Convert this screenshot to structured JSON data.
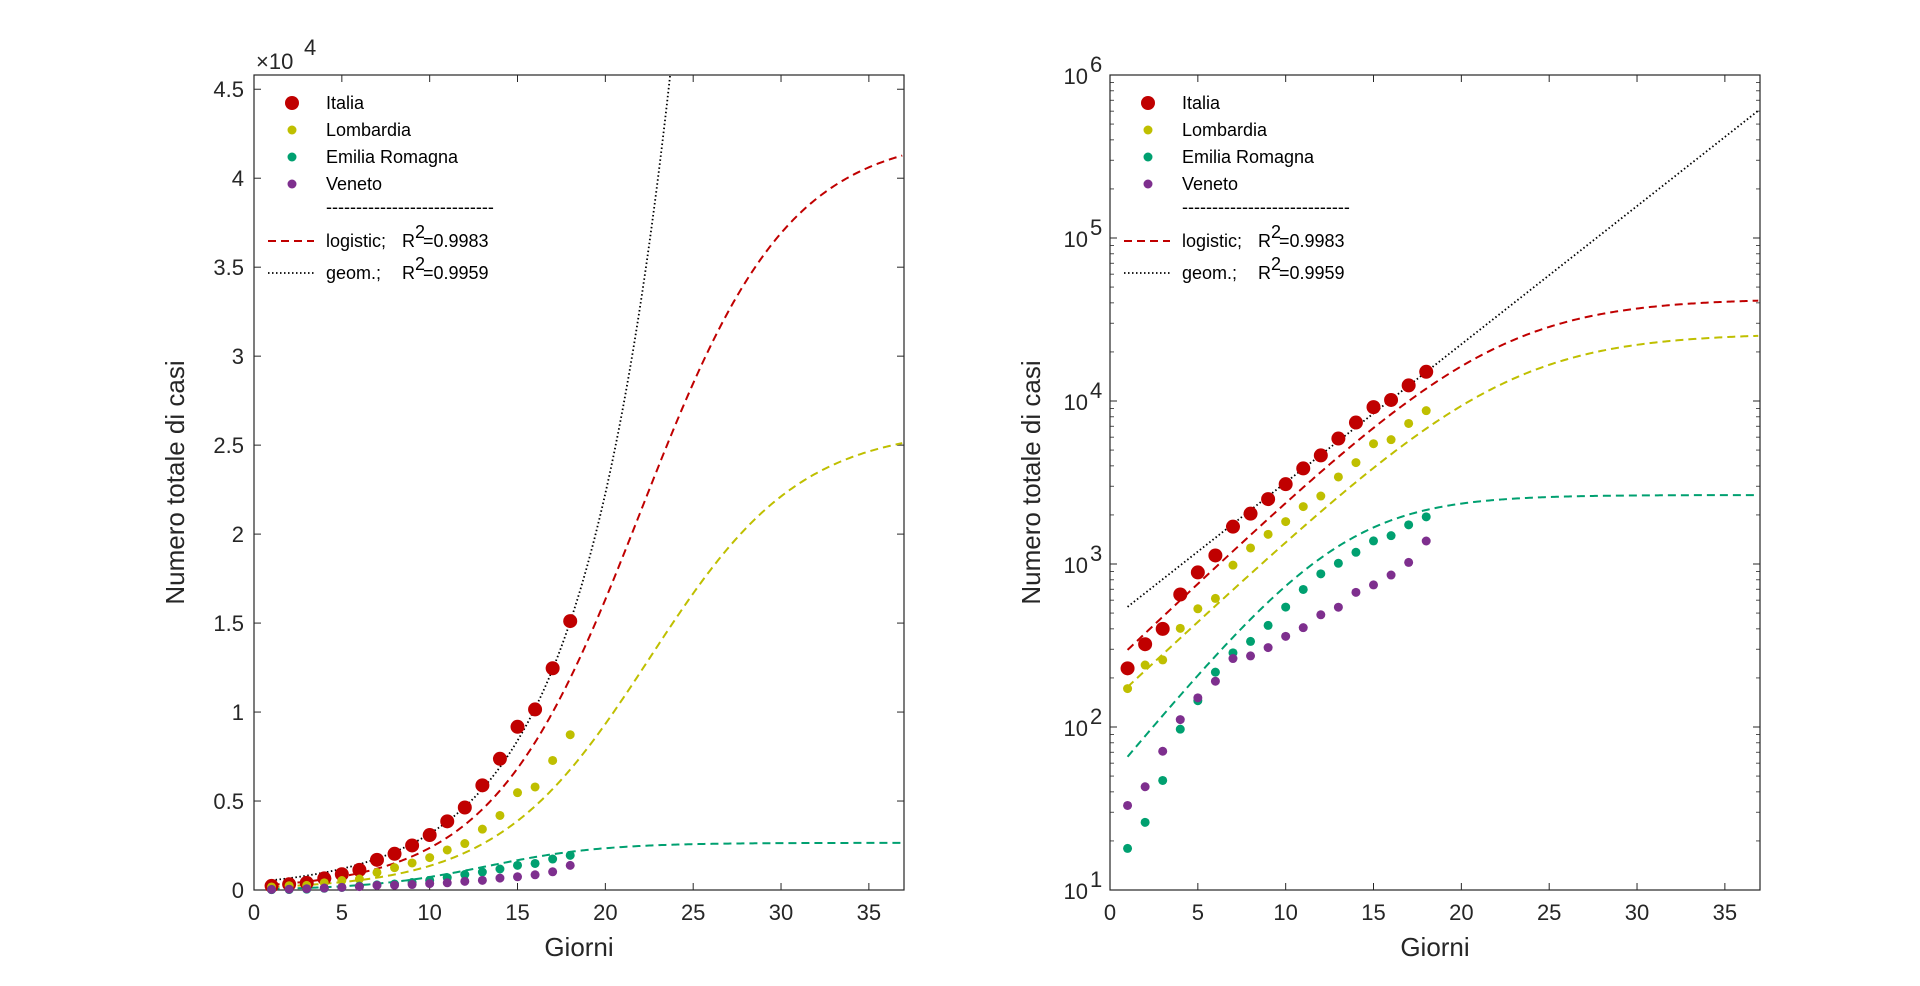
{
  "chart_data": [
    {
      "type": "scatter",
      "scale": "linear",
      "exponent_label": "×10",
      "exponent_power": "4",
      "xlabel": "Giorni",
      "ylabel": "Numero totale di casi",
      "xlim": [
        0,
        37
      ],
      "ylim": [
        0,
        45800
      ],
      "xticks": [
        0,
        5,
        10,
        15,
        20,
        25,
        30,
        35
      ],
      "xtick_labels": [
        "0",
        "5",
        "10",
        "15",
        "20",
        "25",
        "30",
        "35"
      ],
      "yticks": [
        0,
        5000,
        10000,
        15000,
        20000,
        25000,
        30000,
        35000,
        40000,
        45000
      ],
      "ytick_labels": [
        "0",
        "0.5",
        "1",
        "1.5",
        "2",
        "2.5",
        "3",
        "3.5",
        "4",
        "4.5"
      ],
      "legend_position": "top-left",
      "grid": false
    },
    {
      "type": "scatter",
      "scale": "log",
      "xlabel": "Giorni",
      "ylabel": "Numero totale di casi",
      "xlim": [
        0,
        37
      ],
      "ylim": [
        10,
        1000000
      ],
      "xticks": [
        0,
        5,
        10,
        15,
        20,
        25,
        30,
        35
      ],
      "xtick_labels": [
        "0",
        "5",
        "10",
        "15",
        "20",
        "25",
        "30",
        "35"
      ],
      "yticks": [
        10,
        100,
        1000,
        10000,
        100000,
        1000000
      ],
      "ytick_base": "10",
      "ytick_powers": [
        "1",
        "2",
        "3",
        "4",
        "5",
        "6"
      ],
      "legend_position": "top-left",
      "grid": false
    }
  ],
  "days": [
    1,
    2,
    3,
    4,
    5,
    6,
    7,
    8,
    9,
    10,
    11,
    12,
    13,
    14,
    15,
    16,
    17,
    18
  ],
  "series": [
    {
      "name": "Italia",
      "color": "#c00000",
      "marker": "large",
      "values": [
        229,
        322,
        400,
        650,
        888,
        1128,
        1694,
        2036,
        2502,
        3089,
        3858,
        4636,
        5883,
        7375,
        9172,
        10149,
        12462,
        15113
      ]
    },
    {
      "name": "Lombardia",
      "color": "#bfbf00",
      "marker": "small",
      "values": [
        172,
        240,
        258,
        403,
        531,
        615,
        984,
        1254,
        1520,
        1820,
        2251,
        2612,
        3420,
        4189,
        5469,
        5791,
        7280,
        8725
      ]
    },
    {
      "name": "Emilia Romagna",
      "color": "#00a070",
      "marker": "small",
      "values": [
        18,
        26,
        47,
        97,
        145,
        217,
        285,
        335,
        420,
        544,
        698,
        870,
        1010,
        1180,
        1386,
        1492,
        1739,
        1947
      ]
    },
    {
      "name": "Veneto",
      "color": "#7e2f8e",
      "marker": "small",
      "values": [
        33,
        43,
        71,
        111,
        151,
        191,
        263,
        273,
        307,
        360,
        407,
        488,
        543,
        670,
        744,
        856,
        1023,
        1384
      ]
    }
  ],
  "fits": {
    "logistic": {
      "label": "logistic;",
      "r2_text": "=0.9983",
      "curves": [
        {
          "series": "Italia",
          "color": "#c00000",
          "K": 42500,
          "r": 0.236,
          "t0": 22.0
        },
        {
          "series": "Lombardia",
          "color": "#bfbf00",
          "K": 26000,
          "r": 0.232,
          "t0": 22.5
        },
        {
          "series": "Emilia Romagna",
          "color": "#00a070",
          "K": 2650,
          "r": 0.301,
          "t0": 13.2
        }
      ]
    },
    "geometric": {
      "label": "geom.;",
      "r2_text": "=0.9959",
      "color": "#000000",
      "a": 449,
      "g": 1.2156
    }
  },
  "legend": {
    "entries": [
      "Italia",
      "Lombardia",
      "Emilia Romagna",
      "Veneto"
    ],
    "separator": "----------------------------",
    "r_symbol": "R",
    "r_power": "2"
  }
}
